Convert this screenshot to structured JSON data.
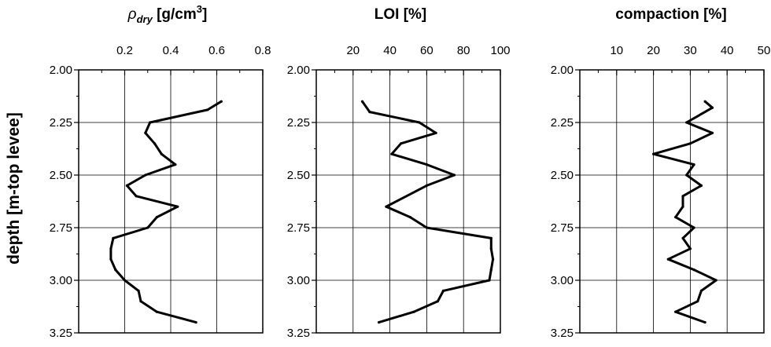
{
  "chart_data": {
    "type": "line",
    "y_axis_title": "depth [m-top levee]",
    "yticks": [
      "2.00",
      "2.25",
      "2.50",
      "2.75",
      "3.00",
      "3.25"
    ],
    "ylim": [
      2.0,
      3.25
    ],
    "y_inverted": true,
    "grid": true,
    "panels": [
      {
        "title": "ρdry [g/cm3]",
        "title_parts": {
          "symbol": "ρ",
          "subscript": "dry",
          "unit_prefix": " [g/cm",
          "superscript": "3",
          "unit_suffix": "]"
        },
        "xlim": [
          0,
          0.8
        ],
        "xticks": [
          0.2,
          0.4,
          0.6,
          0.8
        ],
        "xtick_labels": [
          "0.2",
          "0.4",
          "0.6",
          "0.8"
        ],
        "series": [
          {
            "x": [
              0.62,
              0.56,
              0.31,
              0.29,
              0.33,
              0.36,
              0.42,
              0.29,
              0.21,
              0.25,
              0.43,
              0.34,
              0.3,
              0.15,
              0.14,
              0.14,
              0.16,
              0.2,
              0.26,
              0.27,
              0.34,
              0.51
            ],
            "y": [
              2.15,
              2.19,
              2.25,
              2.3,
              2.35,
              2.4,
              2.45,
              2.5,
              2.55,
              2.6,
              2.65,
              2.7,
              2.75,
              2.8,
              2.85,
              2.9,
              2.95,
              3.0,
              3.05,
              3.1,
              3.15,
              3.2
            ]
          }
        ]
      },
      {
        "title": "LOI [%]",
        "xlim": [
          0,
          100
        ],
        "xticks": [
          20,
          40,
          60,
          80,
          100
        ],
        "xtick_labels": [
          "20",
          "40",
          "60",
          "80",
          "100"
        ],
        "series": [
          {
            "x": [
              25,
              29,
              56,
              65,
              46,
              41,
              60,
              75,
              60,
              38,
              51,
              60,
              95,
              95,
              96,
              95,
              94,
              69,
              66,
              53,
              34
            ],
            "y": [
              2.15,
              2.2,
              2.25,
              2.3,
              2.35,
              2.4,
              2.45,
              2.5,
              2.55,
              2.65,
              2.7,
              2.75,
              2.8,
              2.85,
              2.9,
              2.95,
              3.0,
              3.05,
              3.1,
              3.15,
              3.2
            ]
          }
        ]
      },
      {
        "title": "compaction [%]",
        "xlim": [
          0,
          50
        ],
        "xticks": [
          10,
          20,
          30,
          40,
          50
        ],
        "xtick_labels": [
          "10",
          "20",
          "30",
          "40",
          "50"
        ],
        "series": [
          {
            "x": [
              34,
              36,
              29,
              36,
              30,
              20,
              31,
              29,
              33,
              28,
              28,
              26,
              31,
              28,
              30,
              24,
              31,
              37,
              33,
              32,
              26,
              34
            ],
            "y": [
              2.15,
              2.18,
              2.25,
              2.3,
              2.35,
              2.4,
              2.45,
              2.5,
              2.55,
              2.6,
              2.65,
              2.7,
              2.75,
              2.8,
              2.85,
              2.9,
              2.95,
              3.0,
              3.05,
              3.1,
              3.15,
              3.2
            ]
          }
        ]
      }
    ]
  }
}
